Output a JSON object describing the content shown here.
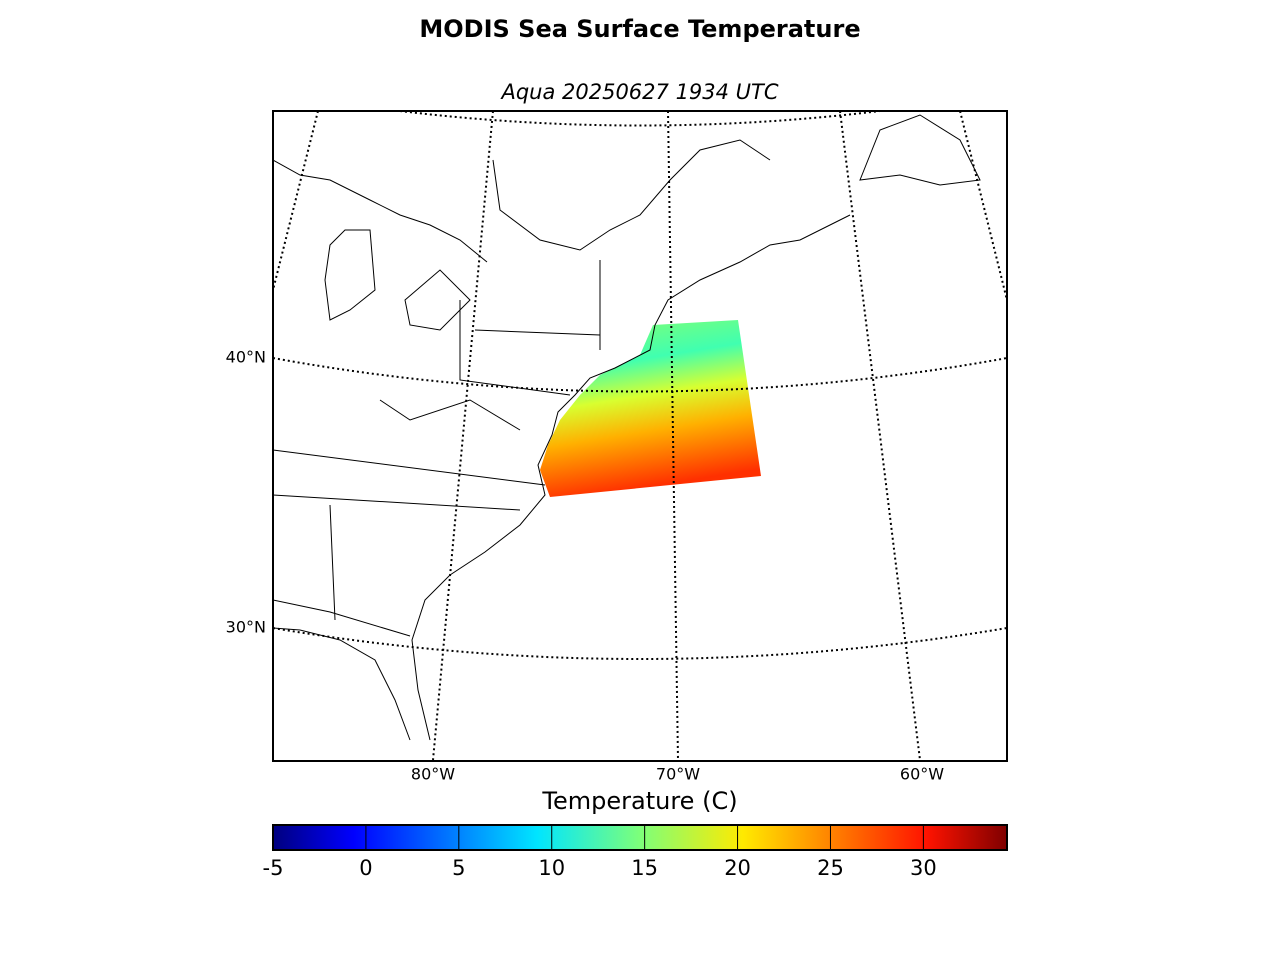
{
  "map": {
    "title": "MODIS Sea Surface Temperature",
    "subtitle": "Aqua 20250627 1934 UTC",
    "lat_labels": [
      "40°N",
      "30°N"
    ],
    "lon_labels": [
      "80°W",
      "70°W",
      "60°W"
    ]
  },
  "colorbar": {
    "label": "Temperature (C)",
    "clim": [
      -5,
      34.5
    ],
    "ticks": [
      -5,
      0,
      5,
      10,
      15,
      20,
      25,
      30
    ]
  }
}
